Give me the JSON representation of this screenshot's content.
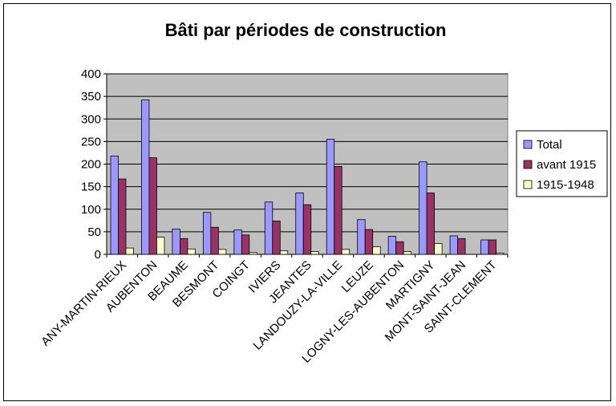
{
  "chart_data": {
    "type": "bar",
    "title": "Bâti par périodes de construction",
    "xlabel": "",
    "ylabel": "",
    "ylim": [
      0,
      400
    ],
    "yticks": [
      0,
      50,
      100,
      150,
      200,
      250,
      300,
      350,
      400
    ],
    "grid": true,
    "legend_position": "right",
    "categories": [
      "ANY-MARTIN-RIEUX",
      "AUBENTON",
      "BEAUME",
      "BESMONT",
      "COINGT",
      "IVIERS",
      "JEANTES",
      "LANDOUZY-LA-VILLE",
      "LEUZE",
      "LOGNY-LES-AUBENTON",
      "MARTIGNY",
      "MONT-SAINT-JEAN",
      "SAINT-CLEMENT"
    ],
    "series": [
      {
        "name": "Total",
        "color": "#9999ff",
        "values": [
          218,
          342,
          56,
          93,
          54,
          116,
          136,
          255,
          77,
          40,
          205,
          41,
          32
        ]
      },
      {
        "name": "avant 1915",
        "color": "#993366",
        "values": [
          167,
          214,
          35,
          60,
          43,
          74,
          110,
          195,
          55,
          28,
          136,
          35,
          32
        ]
      },
      {
        "name": "1915-1948",
        "color": "#ffffcc",
        "values": [
          14,
          38,
          12,
          11,
          4,
          8,
          6,
          11,
          17,
          6,
          24,
          0,
          3
        ]
      }
    ]
  }
}
